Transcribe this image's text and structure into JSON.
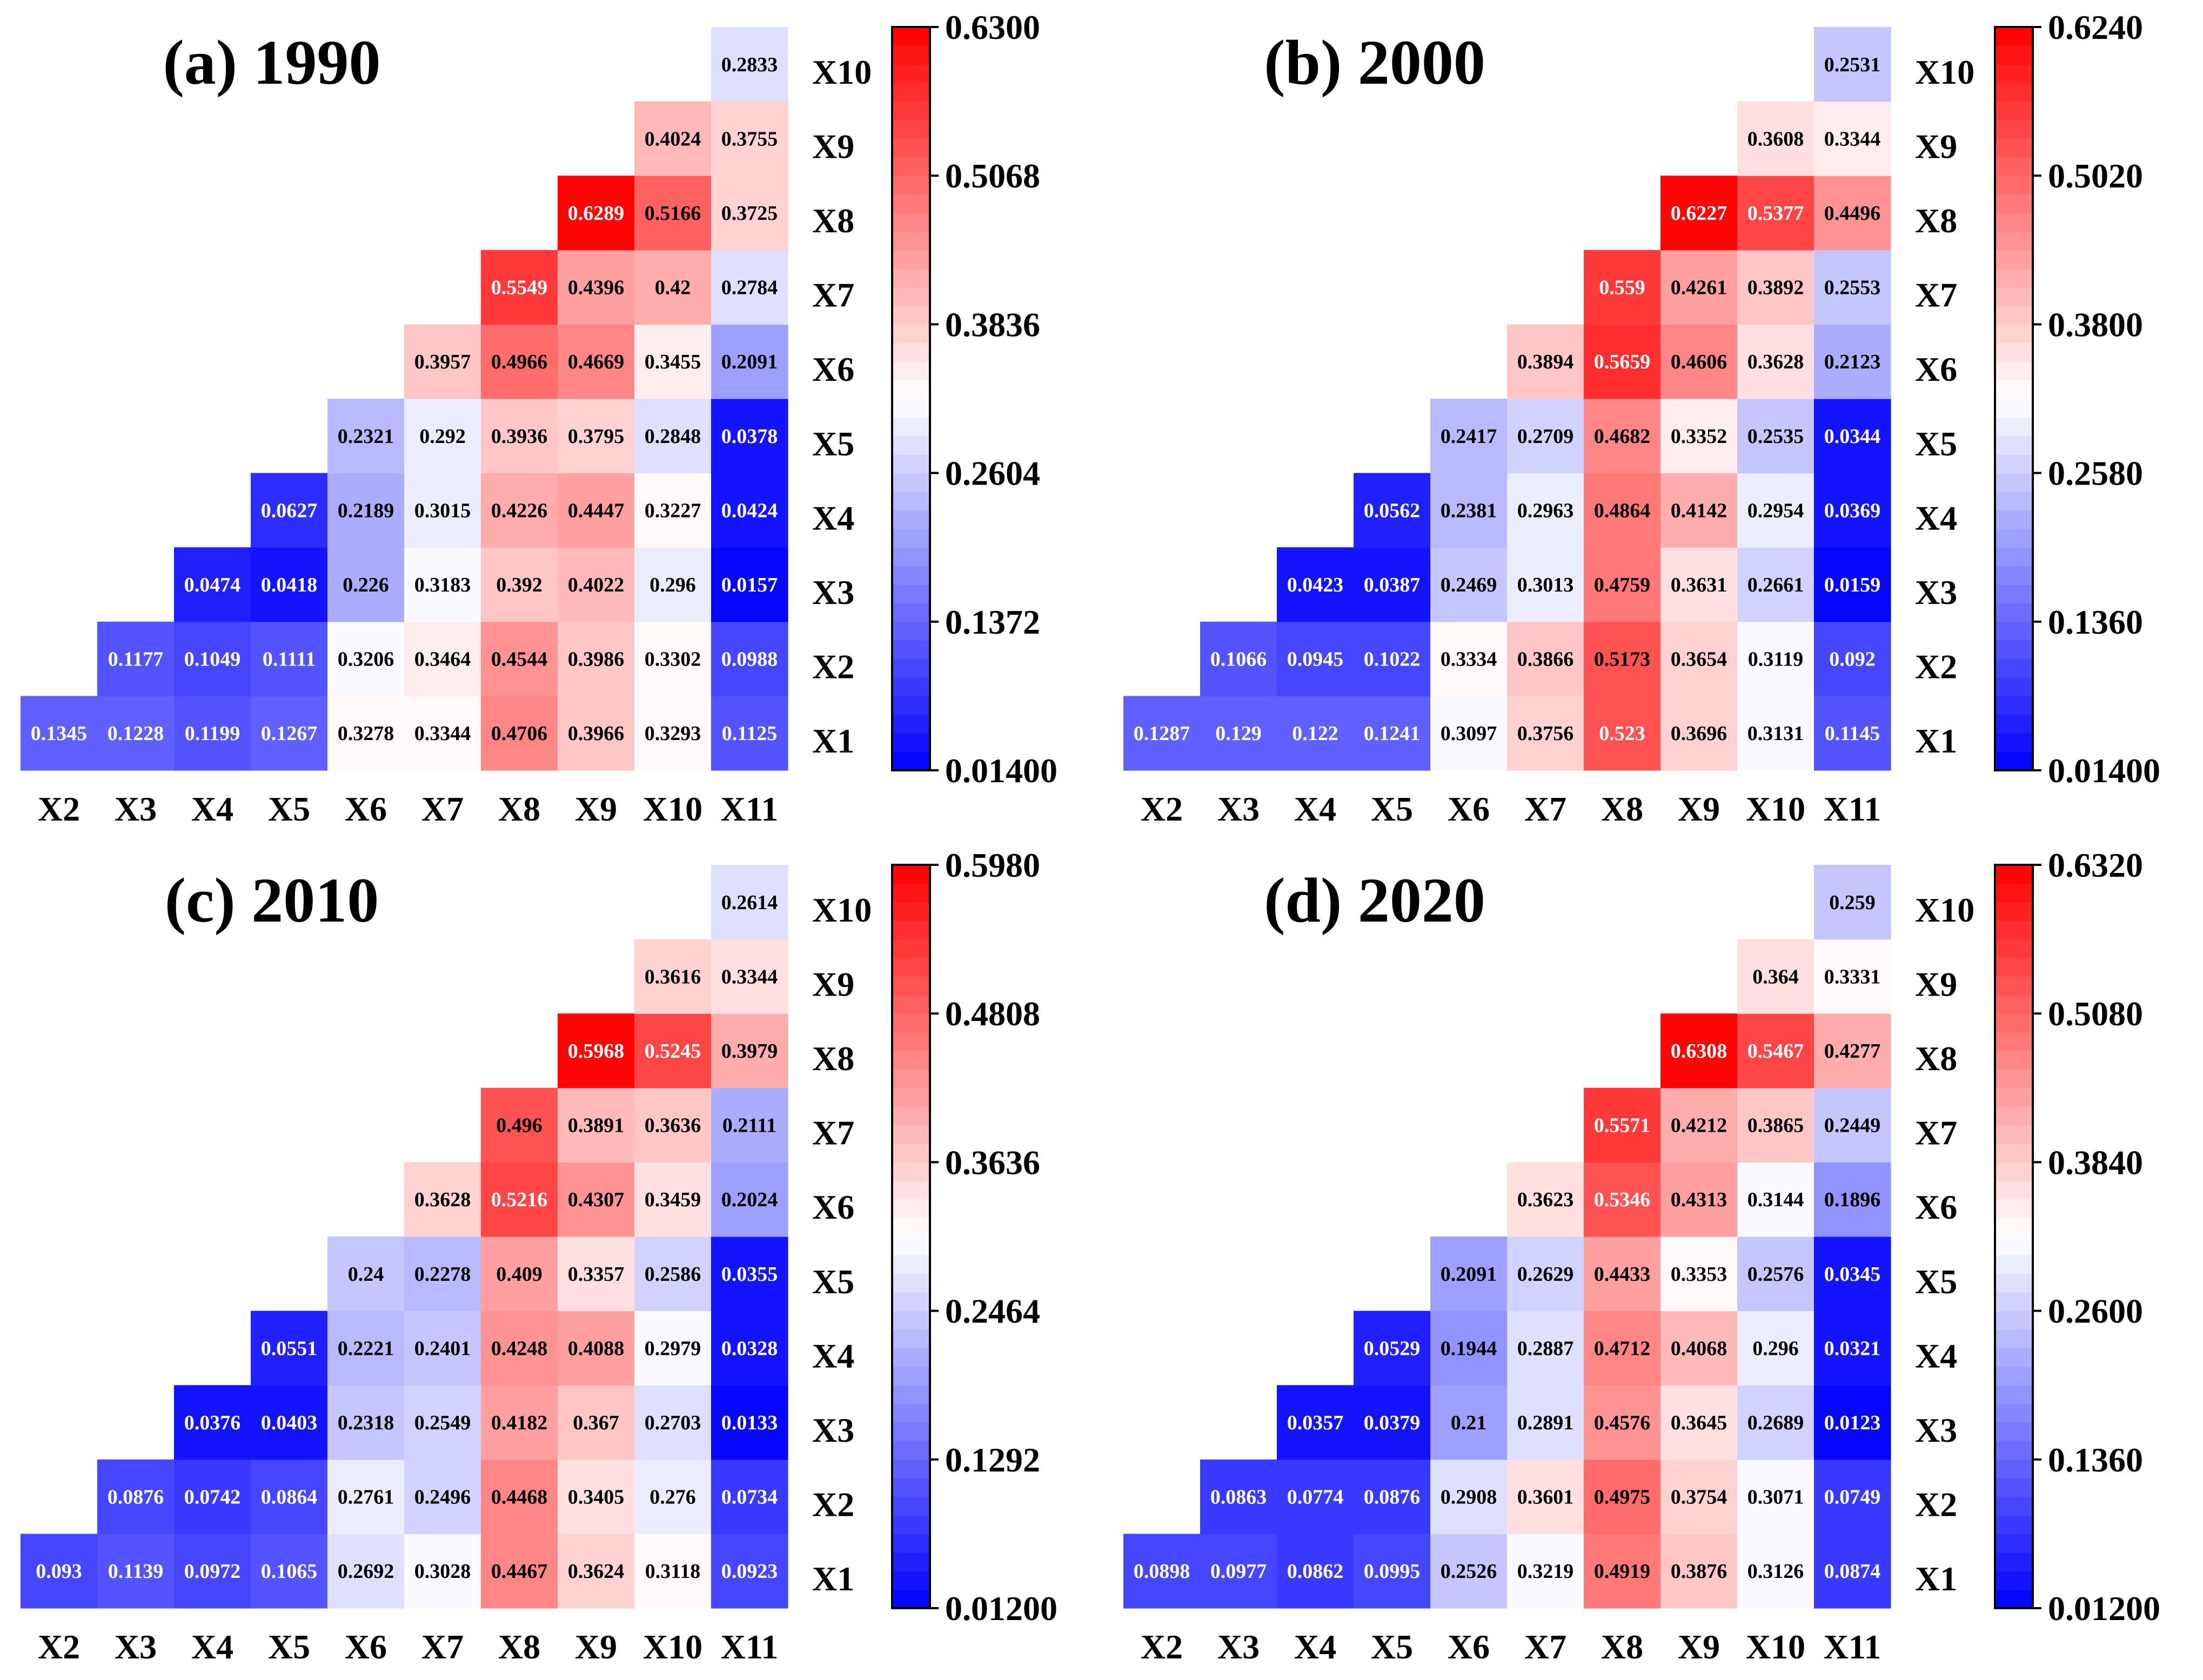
{
  "chart_data": [
    {
      "type": "heatmap",
      "title": "(a) 1990",
      "columns": [
        "X2",
        "X3",
        "X4",
        "X5",
        "X6",
        "X7",
        "X8",
        "X9",
        "X10",
        "X11"
      ],
      "rows": [
        "X1",
        "X2",
        "X3",
        "X4",
        "X5",
        "X6",
        "X7",
        "X8",
        "X9",
        "X10"
      ],
      "cells": [
        [
          "0.1345",
          "0.1228",
          "0.1199",
          "0.1267",
          "0.3278",
          "0.3344",
          "0.4706",
          "0.3966",
          "0.3293",
          "0.1125"
        ],
        [
          null,
          "0.1177",
          "0.1049",
          "0.1111",
          "0.3206",
          "0.3464",
          "0.4544",
          "0.3986",
          "0.3302",
          "0.0988"
        ],
        [
          null,
          null,
          "0.0474",
          "0.0418",
          "0.226",
          "0.3183",
          "0.392",
          "0.4022",
          "0.296",
          "0.0157"
        ],
        [
          null,
          null,
          null,
          "0.0627",
          "0.2189",
          "0.3015",
          "0.4226",
          "0.4447",
          "0.3227",
          "0.0424"
        ],
        [
          null,
          null,
          null,
          null,
          "0.2321",
          "0.292",
          "0.3936",
          "0.3795",
          "0.2848",
          "0.0378"
        ],
        [
          null,
          null,
          null,
          null,
          null,
          "0.3957",
          "0.4966",
          "0.4669",
          "0.3455",
          "0.2091"
        ],
        [
          null,
          null,
          null,
          null,
          null,
          null,
          "0.5549",
          "0.4396",
          "0.42",
          "0.2784"
        ],
        [
          null,
          null,
          null,
          null,
          null,
          null,
          null,
          "0.6289",
          "0.5166",
          "0.3725"
        ],
        [
          null,
          null,
          null,
          null,
          null,
          null,
          null,
          null,
          "0.4024",
          "0.3755"
        ],
        [
          null,
          null,
          null,
          null,
          null,
          null,
          null,
          null,
          null,
          "0.2833"
        ]
      ],
      "colorbar": {
        "min": 0.014,
        "max": 0.63,
        "ticks": [
          "0.01400",
          "0.1372",
          "0.2604",
          "0.3836",
          "0.5068",
          "0.6300"
        ],
        "low_color": "#0000ff",
        "mid_color": "#ffffff",
        "high_color": "#ff0000"
      }
    },
    {
      "type": "heatmap",
      "title": "(b) 2000",
      "columns": [
        "X2",
        "X3",
        "X4",
        "X5",
        "X6",
        "X7",
        "X8",
        "X9",
        "X10",
        "X11"
      ],
      "rows": [
        "X1",
        "X2",
        "X3",
        "X4",
        "X5",
        "X6",
        "X7",
        "X8",
        "X9",
        "X10"
      ],
      "cells": [
        [
          "0.1287",
          "0.129",
          "0.122",
          "0.1241",
          "0.3097",
          "0.3756",
          "0.523",
          "0.3696",
          "0.3131",
          "0.1145"
        ],
        [
          null,
          "0.1066",
          "0.0945",
          "0.1022",
          "0.3334",
          "0.3866",
          "0.5173",
          "0.3654",
          "0.3119",
          "0.092"
        ],
        [
          null,
          null,
          "0.0423",
          "0.0387",
          "0.2469",
          "0.3013",
          "0.4759",
          "0.3631",
          "0.2661",
          "0.0159"
        ],
        [
          null,
          null,
          null,
          "0.0562",
          "0.2381",
          "0.2963",
          "0.4864",
          "0.4142",
          "0.2954",
          "0.0369"
        ],
        [
          null,
          null,
          null,
          null,
          "0.2417",
          "0.2709",
          "0.4682",
          "0.3352",
          "0.2535",
          "0.0344"
        ],
        [
          null,
          null,
          null,
          null,
          null,
          "0.3894",
          "0.5659",
          "0.4606",
          "0.3628",
          "0.2123"
        ],
        [
          null,
          null,
          null,
          null,
          null,
          null,
          "0.559",
          "0.4261",
          "0.3892",
          "0.2553"
        ],
        [
          null,
          null,
          null,
          null,
          null,
          null,
          null,
          "0.6227",
          "0.5377",
          "0.4496"
        ],
        [
          null,
          null,
          null,
          null,
          null,
          null,
          null,
          null,
          "0.3608",
          "0.3344"
        ],
        [
          null,
          null,
          null,
          null,
          null,
          null,
          null,
          null,
          null,
          "0.2531"
        ]
      ],
      "colorbar": {
        "min": 0.014,
        "max": 0.624,
        "ticks": [
          "0.01400",
          "0.1360",
          "0.2580",
          "0.3800",
          "0.5020",
          "0.6240"
        ],
        "low_color": "#0000ff",
        "mid_color": "#ffffff",
        "high_color": "#ff0000"
      }
    },
    {
      "type": "heatmap",
      "title": "(c) 2010",
      "columns": [
        "X2",
        "X3",
        "X4",
        "X5",
        "X6",
        "X7",
        "X8",
        "X9",
        "X10",
        "X11"
      ],
      "rows": [
        "X1",
        "X2",
        "X3",
        "X4",
        "X5",
        "X6",
        "X7",
        "X8",
        "X9",
        "X10"
      ],
      "cells": [
        [
          "0.093",
          "0.1139",
          "0.0972",
          "0.1065",
          "0.2692",
          "0.3028",
          "0.4467",
          "0.3624",
          "0.3118",
          "0.0923"
        ],
        [
          null,
          "0.0876",
          "0.0742",
          "0.0864",
          "0.2761",
          "0.2496",
          "0.4468",
          "0.3405",
          "0.276",
          "0.0734"
        ],
        [
          null,
          null,
          "0.0376",
          "0.0403",
          "0.2318",
          "0.2549",
          "0.4182",
          "0.367",
          "0.2703",
          "0.0133"
        ],
        [
          null,
          null,
          null,
          "0.0551",
          "0.2221",
          "0.2401",
          "0.4248",
          "0.4088",
          "0.2979",
          "0.0328"
        ],
        [
          null,
          null,
          null,
          null,
          "0.24",
          "0.2278",
          "0.409",
          "0.3357",
          "0.2586",
          "0.0355"
        ],
        [
          null,
          null,
          null,
          null,
          null,
          "0.3628",
          "0.5216",
          "0.4307",
          "0.3459",
          "0.2024"
        ],
        [
          null,
          null,
          null,
          null,
          null,
          null,
          "0.496",
          "0.3891",
          "0.3636",
          "0.2111"
        ],
        [
          null,
          null,
          null,
          null,
          null,
          null,
          null,
          "0.5968",
          "0.5245",
          "0.3979"
        ],
        [
          null,
          null,
          null,
          null,
          null,
          null,
          null,
          null,
          "0.3616",
          "0.3344"
        ],
        [
          null,
          null,
          null,
          null,
          null,
          null,
          null,
          null,
          null,
          "0.2614"
        ]
      ],
      "colorbar": {
        "min": 0.012,
        "max": 0.598,
        "ticks": [
          "0.01200",
          "0.1292",
          "0.2464",
          "0.3636",
          "0.4808",
          "0.5980"
        ],
        "low_color": "#0000ff",
        "mid_color": "#ffffff",
        "high_color": "#ff0000"
      }
    },
    {
      "type": "heatmap",
      "title": "(d) 2020",
      "columns": [
        "X2",
        "X3",
        "X4",
        "X5",
        "X6",
        "X7",
        "X8",
        "X9",
        "X10",
        "X11"
      ],
      "rows": [
        "X1",
        "X2",
        "X3",
        "X4",
        "X5",
        "X6",
        "X7",
        "X8",
        "X9",
        "X10"
      ],
      "cells": [
        [
          "0.0898",
          "0.0977",
          "0.0862",
          "0.0995",
          "0.2526",
          "0.3219",
          "0.4919",
          "0.3876",
          "0.3126",
          "0.0874"
        ],
        [
          null,
          "0.0863",
          "0.0774",
          "0.0876",
          "0.2908",
          "0.3601",
          "0.4975",
          "0.3754",
          "0.3071",
          "0.0749"
        ],
        [
          null,
          null,
          "0.0357",
          "0.0379",
          "0.21",
          "0.2891",
          "0.4576",
          "0.3645",
          "0.2689",
          "0.0123"
        ],
        [
          null,
          null,
          null,
          "0.0529",
          "0.1944",
          "0.2887",
          "0.4712",
          "0.4068",
          "0.296",
          "0.0321"
        ],
        [
          null,
          null,
          null,
          null,
          "0.2091",
          "0.2629",
          "0.4433",
          "0.3353",
          "0.2576",
          "0.0345"
        ],
        [
          null,
          null,
          null,
          null,
          null,
          "0.3623",
          "0.5346",
          "0.4313",
          "0.3144",
          "0.1896"
        ],
        [
          null,
          null,
          null,
          null,
          null,
          null,
          "0.5571",
          "0.4212",
          "0.3865",
          "0.2449"
        ],
        [
          null,
          null,
          null,
          null,
          null,
          null,
          null,
          "0.6308",
          "0.5467",
          "0.4277"
        ],
        [
          null,
          null,
          null,
          null,
          null,
          null,
          null,
          null,
          "0.364",
          "0.3331"
        ],
        [
          null,
          null,
          null,
          null,
          null,
          null,
          null,
          null,
          null,
          "0.259"
        ]
      ],
      "colorbar": {
        "min": 0.012,
        "max": 0.632,
        "ticks": [
          "0.01200",
          "0.1360",
          "0.2600",
          "0.3840",
          "0.5080",
          "0.6320"
        ],
        "low_color": "#0000ff",
        "mid_color": "#ffffff",
        "high_color": "#ff0000"
      }
    }
  ]
}
